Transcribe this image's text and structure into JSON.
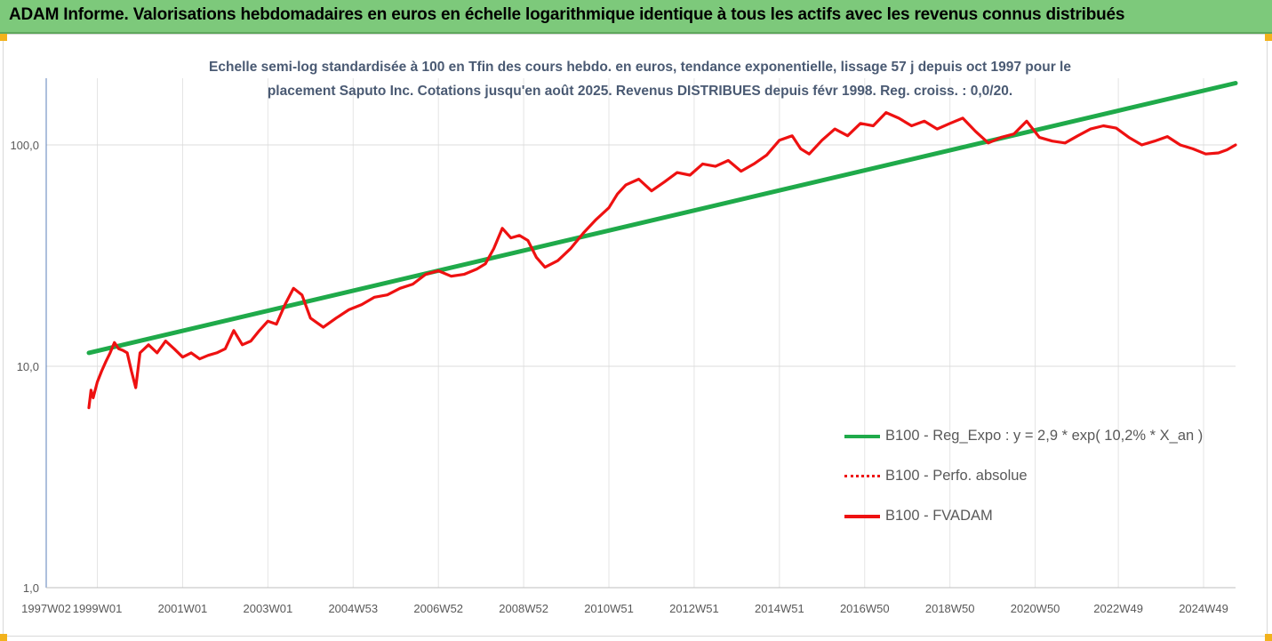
{
  "banner": {
    "title": "ADAM Informe. Valorisations hebdomadaires en euros en échelle logarithmique identique à tous les actifs avec les revenus connus distribués"
  },
  "colors": {
    "banner": "#7dc97b",
    "regression": "#1faa4a",
    "series": "#ee1111",
    "subtitle": "#4a5a73",
    "corner": "#f2b21c"
  },
  "chart_data": {
    "type": "line",
    "title": "Echelle semi-log standardisée à 100 en Tfin des cours hebdo. en euros, tendance exponentielle, lissage 57 j depuis oct 1997 pour le placement Saputo Inc. Cotations jusqu'en août 2025. Revenus DISTRIBUES depuis févr 1998. Reg. croiss. : 0,0/20.",
    "subtitle_lines": [
      "Echelle semi-log standardisée à 100 en Tfin des cours hebdo. en euros, tendance exponentielle, lissage 57 j depuis oct 1997 pour le",
      "placement Saputo Inc. Cotations jusqu'en août 2025. Revenus DISTRIBUES depuis févr 1998. Reg. croiss. : 0,0/20."
    ],
    "y_scale": "log",
    "ylim": [
      1,
      200
    ],
    "y_ticks": [
      1,
      10,
      100
    ],
    "y_tick_labels": [
      "1,0",
      "10,0",
      "100,0"
    ],
    "xlim": [
      1997.8,
      2025.7
    ],
    "x_ticks": [
      1997.8,
      1999.0,
      2001.0,
      2003.0,
      2005.0,
      2007.0,
      2009.0,
      2011.0,
      2013.0,
      2015.0,
      2017.0,
      2019.0,
      2021.0,
      2022.95,
      2024.95
    ],
    "x_tick_labels": [
      "1997W02",
      "1999W01",
      "2001W01",
      "2003W01",
      "2004W53",
      "2006W52",
      "2008W52",
      "2010W51",
      "2012W51",
      "2014W51",
      "2016W50",
      "2018W50",
      "2020W50",
      "2022W49",
      "2024W49"
    ],
    "grid": true,
    "legend_position": "bottom-right",
    "series": [
      {
        "name": "B100 - Reg_Expo : y = 2,9 * exp( 10,2% *  X_an )",
        "style": "solid-green",
        "x": [
          1998.8,
          2025.7
        ],
        "y": [
          11.5,
          190
        ]
      },
      {
        "name": "B100 - Perfo. absolue",
        "style": "dotted-red",
        "x": [],
        "y": []
      },
      {
        "name": "B100 - FVADAM",
        "style": "solid-red",
        "x": [
          1998.8,
          1998.85,
          1998.9,
          1999.0,
          1999.1,
          1999.2,
          1999.3,
          1999.4,
          1999.5,
          1999.6,
          1999.7,
          1999.8,
          1999.9,
          2000.0,
          2000.2,
          2000.4,
          2000.6,
          2000.8,
          2001.0,
          2001.2,
          2001.4,
          2001.6,
          2001.8,
          2002.0,
          2002.2,
          2002.4,
          2002.6,
          2002.8,
          2003.0,
          2003.2,
          2003.4,
          2003.6,
          2003.8,
          2004.0,
          2004.3,
          2004.6,
          2004.9,
          2005.2,
          2005.5,
          2005.8,
          2006.1,
          2006.4,
          2006.7,
          2007.0,
          2007.3,
          2007.6,
          2007.9,
          2008.1,
          2008.3,
          2008.5,
          2008.7,
          2008.9,
          2009.1,
          2009.3,
          2009.5,
          2009.8,
          2010.1,
          2010.4,
          2010.7,
          2011.0,
          2011.2,
          2011.4,
          2011.7,
          2012.0,
          2012.3,
          2012.6,
          2012.9,
          2013.2,
          2013.5,
          2013.8,
          2014.1,
          2014.4,
          2014.7,
          2015.0,
          2015.3,
          2015.5,
          2015.7,
          2016.0,
          2016.3,
          2016.6,
          2016.9,
          2017.2,
          2017.5,
          2017.8,
          2018.1,
          2018.4,
          2018.7,
          2019.0,
          2019.3,
          2019.6,
          2019.9,
          2020.2,
          2020.5,
          2020.8,
          2021.1,
          2021.4,
          2021.7,
          2022.0,
          2022.3,
          2022.6,
          2022.9,
          2023.2,
          2023.5,
          2023.8,
          2024.1,
          2024.4,
          2024.7,
          2025.0,
          2025.3,
          2025.5,
          2025.7
        ],
        "y": [
          6.5,
          7.8,
          7.2,
          8.5,
          9.5,
          10.5,
          11.5,
          12.8,
          12.0,
          11.8,
          11.5,
          9.5,
          8.0,
          11.5,
          12.5,
          11.5,
          13.0,
          12.0,
          11.0,
          11.5,
          10.8,
          11.2,
          11.5,
          12.0,
          14.5,
          12.5,
          13.0,
          14.5,
          16.0,
          15.5,
          19.0,
          22.5,
          21.0,
          16.5,
          15.0,
          16.5,
          18.0,
          19.0,
          20.5,
          21.0,
          22.5,
          23.5,
          26.0,
          27.0,
          25.5,
          26.0,
          27.5,
          29.0,
          34.0,
          42.0,
          38.0,
          39.0,
          37.0,
          31.0,
          28.0,
          30.0,
          34.0,
          40.0,
          46.0,
          52.0,
          60.0,
          66.0,
          70.0,
          62.0,
          68.0,
          75.0,
          73.0,
          82.0,
          80.0,
          85.0,
          76.0,
          82.0,
          90.0,
          105.0,
          110.0,
          96.0,
          91.0,
          105.0,
          118.0,
          110.0,
          125.0,
          122.0,
          140.0,
          132.0,
          122.0,
          128.0,
          118.0,
          125.0,
          132.0,
          115.0,
          102.0,
          108.0,
          112.0,
          128.0,
          108.0,
          104.0,
          102.0,
          110.0,
          118.0,
          122.0,
          119.0,
          108.0,
          100.0,
          104.0,
          109.0,
          100.0,
          96.0,
          91.0,
          92.0,
          95.0,
          100.0
        ]
      }
    ]
  }
}
